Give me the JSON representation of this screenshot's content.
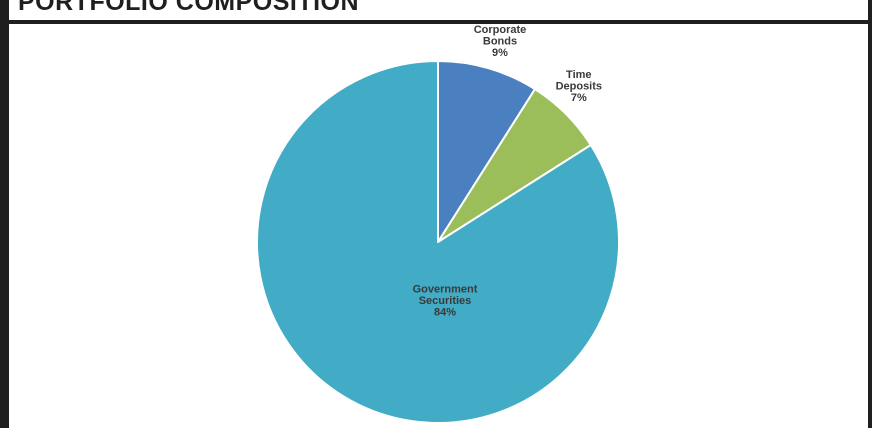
{
  "title": "PORTFOLIO COMPOSITION",
  "chart_data": {
    "type": "pie",
    "title": "PORTFOLIO COMPOSITION",
    "start_angle_deg": 0,
    "direction": "clockwise",
    "slices": [
      {
        "label_lines": [
          "Corporate",
          "Bonds"
        ],
        "value": 9,
        "value_label": "9%",
        "color": "#4a80c0"
      },
      {
        "label_lines": [
          "Time",
          "Deposits"
        ],
        "value": 7,
        "value_label": "7%",
        "color": "#9bbd5a"
      },
      {
        "label_lines": [
          "Government",
          "Securities"
        ],
        "value": 84,
        "value_label": "84%",
        "color": "#42abc6"
      }
    ],
    "legend": "none"
  },
  "colors": {
    "border": "#1f1f1f",
    "slice_edge": "#ffffff",
    "label_text": "#3a3a3a"
  }
}
